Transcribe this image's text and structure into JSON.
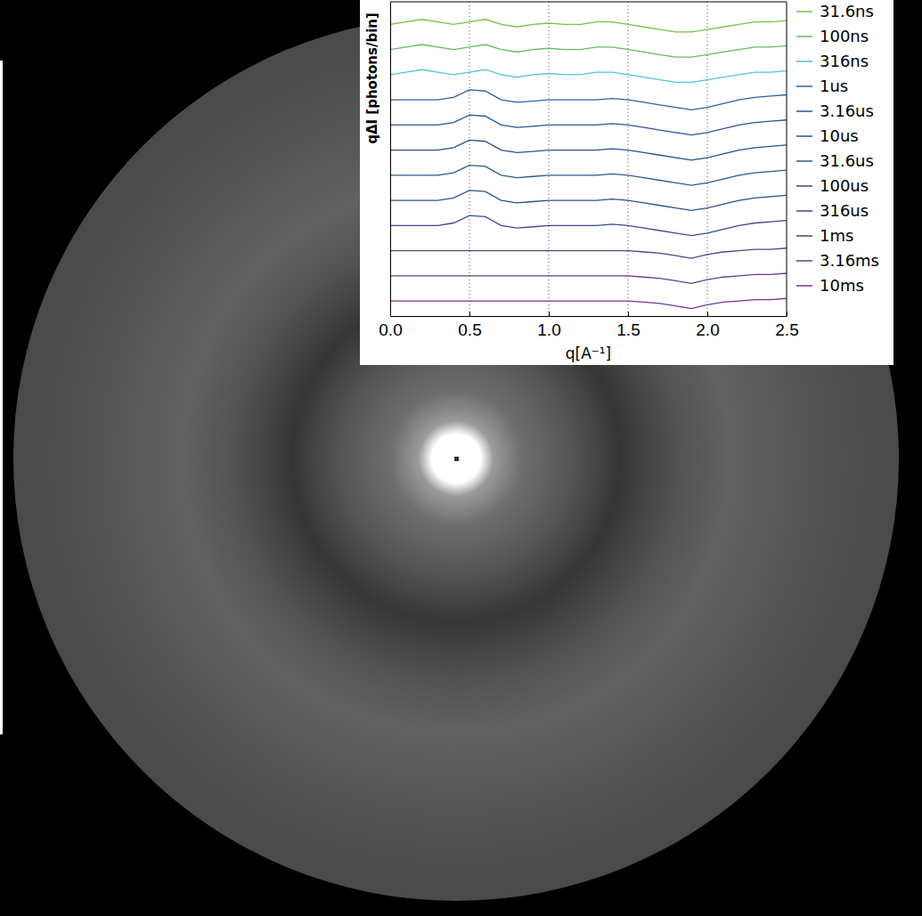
{
  "chart_data": {
    "type": "line",
    "x_label": "q[A⁻¹]",
    "y_label": "qΔI [photons/bin]",
    "x": [
      0,
      0.1,
      0.2,
      0.3,
      0.4,
      0.5,
      0.6,
      0.7,
      0.8,
      0.9,
      1.0,
      1.1,
      1.2,
      1.3,
      1.4,
      1.5,
      1.6,
      1.7,
      1.8,
      1.9,
      2.0,
      2.1,
      2.2,
      2.3,
      2.4,
      2.5
    ],
    "xlim": [
      0,
      2.5
    ],
    "xticks": [
      {
        "value": 0,
        "label": "0.0"
      },
      {
        "value": 0.5,
        "label": "0.5"
      },
      {
        "value": 1,
        "label": "1.0"
      },
      {
        "value": 1.5,
        "label": "1.5"
      },
      {
        "value": 2,
        "label": "2.0"
      },
      {
        "value": 2.5,
        "label": "2.5"
      }
    ],
    "ylim": [
      0,
      12.5
    ],
    "tick_labels": "x",
    "grid": true,
    "legend": "right",
    "series": [
      {
        "name": "31.6ns",
        "color": "#7cc144",
        "values": [
          11.6,
          11.7,
          11.8,
          11.7,
          11.6,
          11.7,
          11.8,
          11.6,
          11.5,
          11.6,
          11.65,
          11.6,
          11.6,
          11.7,
          11.7,
          11.6,
          11.5,
          11.4,
          11.3,
          11.3,
          11.4,
          11.5,
          11.6,
          11.7,
          11.7,
          11.75
        ]
      },
      {
        "name": "100ns",
        "color": "#62bd5e",
        "values": [
          10.6,
          10.7,
          10.8,
          10.7,
          10.6,
          10.7,
          10.8,
          10.6,
          10.5,
          10.6,
          10.65,
          10.6,
          10.6,
          10.7,
          10.7,
          10.6,
          10.5,
          10.4,
          10.3,
          10.3,
          10.4,
          10.5,
          10.6,
          10.7,
          10.7,
          10.75
        ]
      },
      {
        "name": "316ns",
        "color": "#4fc6d6",
        "values": [
          9.6,
          9.7,
          9.8,
          9.7,
          9.6,
          9.7,
          9.8,
          9.6,
          9.5,
          9.6,
          9.65,
          9.6,
          9.6,
          9.7,
          9.7,
          9.6,
          9.5,
          9.4,
          9.3,
          9.3,
          9.4,
          9.5,
          9.6,
          9.7,
          9.7,
          9.75
        ]
      },
      {
        "name": "1us",
        "color": "#2b62a8",
        "values": [
          8.6,
          8.6,
          8.6,
          8.6,
          8.7,
          9.0,
          8.95,
          8.6,
          8.5,
          8.55,
          8.6,
          8.6,
          8.6,
          8.6,
          8.65,
          8.6,
          8.5,
          8.4,
          8.3,
          8.2,
          8.3,
          8.45,
          8.6,
          8.7,
          8.75,
          8.8
        ]
      },
      {
        "name": "3.16us",
        "color": "#2a5598",
        "values": [
          7.6,
          7.6,
          7.6,
          7.6,
          7.7,
          8.0,
          7.95,
          7.6,
          7.5,
          7.55,
          7.6,
          7.6,
          7.6,
          7.6,
          7.65,
          7.6,
          7.5,
          7.4,
          7.3,
          7.2,
          7.3,
          7.45,
          7.6,
          7.7,
          7.75,
          7.8
        ]
      },
      {
        "name": "10us",
        "color": "#2b508c",
        "values": [
          6.6,
          6.6,
          6.6,
          6.6,
          6.7,
          7.0,
          6.95,
          6.6,
          6.5,
          6.55,
          6.6,
          6.6,
          6.6,
          6.6,
          6.65,
          6.6,
          6.5,
          6.4,
          6.3,
          6.2,
          6.3,
          6.45,
          6.6,
          6.7,
          6.75,
          6.8
        ]
      },
      {
        "name": "31.6us",
        "color": "#2d5a8a",
        "values": [
          5.6,
          5.6,
          5.6,
          5.6,
          5.7,
          6.0,
          5.95,
          5.6,
          5.5,
          5.55,
          5.6,
          5.6,
          5.6,
          5.6,
          5.65,
          5.6,
          5.5,
          5.4,
          5.3,
          5.2,
          5.3,
          5.45,
          5.6,
          5.7,
          5.75,
          5.8
        ]
      },
      {
        "name": "100us",
        "color": "#2f4f92",
        "values": [
          4.6,
          4.6,
          4.6,
          4.6,
          4.7,
          5.0,
          4.95,
          4.6,
          4.5,
          4.55,
          4.6,
          4.6,
          4.6,
          4.6,
          4.65,
          4.6,
          4.5,
          4.4,
          4.3,
          4.2,
          4.3,
          4.45,
          4.6,
          4.7,
          4.75,
          4.8
        ]
      },
      {
        "name": "316us",
        "color": "#3b4a94",
        "values": [
          3.6,
          3.6,
          3.6,
          3.6,
          3.7,
          4.0,
          3.95,
          3.6,
          3.5,
          3.55,
          3.6,
          3.6,
          3.6,
          3.6,
          3.65,
          3.6,
          3.5,
          3.4,
          3.3,
          3.2,
          3.3,
          3.45,
          3.6,
          3.7,
          3.75,
          3.8
        ]
      },
      {
        "name": "1ms",
        "color": "#5a3f8a",
        "values": [
          2.6,
          2.6,
          2.6,
          2.6,
          2.6,
          2.6,
          2.6,
          2.6,
          2.6,
          2.6,
          2.6,
          2.6,
          2.6,
          2.6,
          2.6,
          2.6,
          2.55,
          2.5,
          2.4,
          2.3,
          2.45,
          2.55,
          2.6,
          2.65,
          2.65,
          2.7
        ]
      },
      {
        "name": "3.16ms",
        "color": "#6b3a8c",
        "values": [
          1.6,
          1.6,
          1.6,
          1.6,
          1.6,
          1.6,
          1.6,
          1.6,
          1.6,
          1.6,
          1.6,
          1.6,
          1.6,
          1.6,
          1.6,
          1.6,
          1.55,
          1.5,
          1.4,
          1.3,
          1.45,
          1.55,
          1.6,
          1.65,
          1.65,
          1.7
        ]
      },
      {
        "name": "10ms",
        "color": "#7a3590",
        "values": [
          0.6,
          0.6,
          0.6,
          0.6,
          0.6,
          0.6,
          0.6,
          0.6,
          0.6,
          0.6,
          0.6,
          0.6,
          0.6,
          0.6,
          0.6,
          0.6,
          0.55,
          0.5,
          0.4,
          0.3,
          0.45,
          0.55,
          0.6,
          0.65,
          0.65,
          0.7
        ]
      }
    ]
  }
}
